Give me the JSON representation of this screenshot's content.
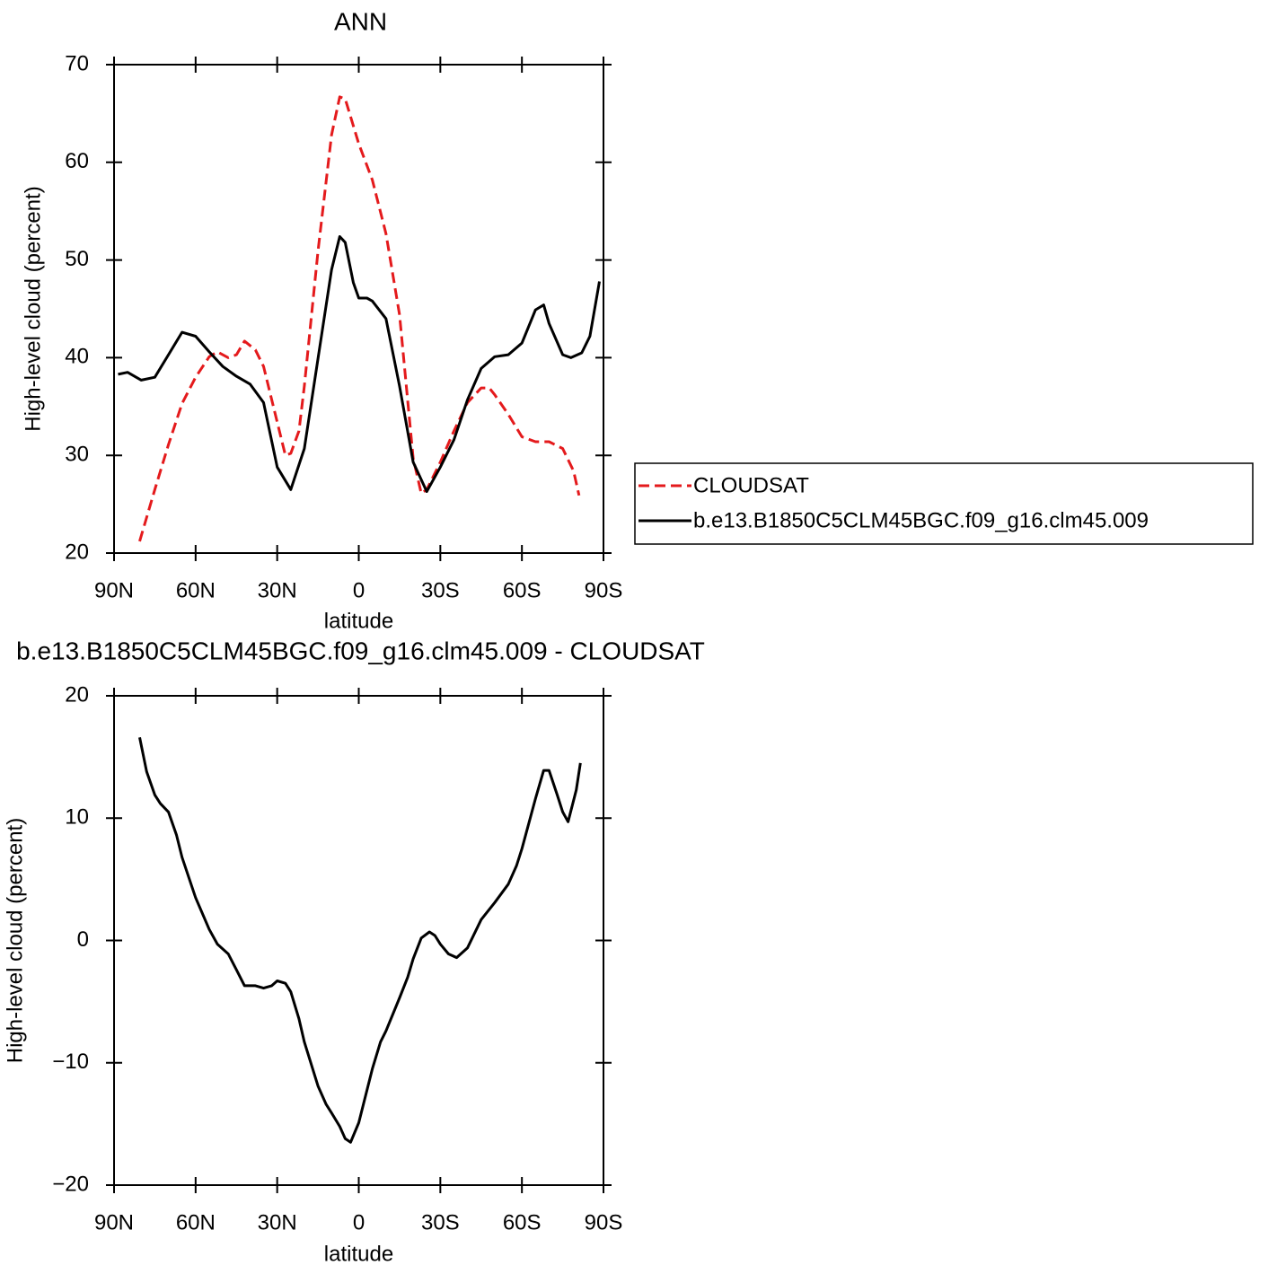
{
  "chart_data": [
    {
      "type": "line",
      "title": "ANN",
      "xlabel": "latitude",
      "ylabel": "High-level cloud (percent)",
      "xlim": [
        90,
        -90
      ],
      "ylim": [
        20,
        70
      ],
      "xticks": [
        {
          "value": 90,
          "label": "90N"
        },
        {
          "value": 60,
          "label": "60N"
        },
        {
          "value": 30,
          "label": "30N"
        },
        0,
        {
          "value": -30,
          "label": "30S"
        },
        {
          "value": -60,
          "label": "60S"
        },
        {
          "value": -90,
          "label": "90S"
        }
      ],
      "yticks": [
        20,
        30,
        40,
        50,
        60,
        70
      ],
      "series": [
        {
          "name": "CLOUDSAT",
          "color": "#e41a1c",
          "linestyle": "dashed",
          "x": [
            80.6,
            75,
            70,
            65,
            60,
            55,
            52,
            48,
            45,
            42,
            38,
            35,
            30,
            27,
            25,
            22,
            20,
            15,
            10,
            7,
            5,
            0,
            -5,
            -10,
            -15,
            -20,
            -23,
            -25,
            -30,
            -35,
            -40,
            -45,
            -48,
            -50,
            -55,
            -60,
            -65,
            -70,
            -75,
            -79,
            -81
          ],
          "values": [
            21.2,
            26.5,
            31.1,
            35.3,
            38.0,
            40.1,
            40.6,
            40.0,
            40.3,
            41.7,
            40.8,
            39.1,
            33.4,
            30.0,
            30.2,
            32.5,
            37.1,
            50.9,
            62.8,
            66.7,
            66.5,
            61.9,
            58.2,
            52.7,
            44.4,
            29.7,
            26.1,
            26.5,
            29.3,
            32.5,
            35.4,
            36.9,
            36.9,
            36.2,
            34.2,
            31.9,
            31.4,
            31.4,
            30.7,
            28.4,
            25.9
          ]
        },
        {
          "name": "b.e13.B1850C5CLM45BGC.f09_g16.clm45.009",
          "color": "#000000",
          "linestyle": "solid",
          "x": [
            88.5,
            85,
            80,
            75,
            70,
            65,
            60,
            55,
            50,
            45,
            40,
            35,
            30,
            25,
            20,
            15,
            10,
            7,
            5,
            2,
            0,
            -3,
            -5,
            -10,
            -15,
            -20,
            -25,
            -30,
            -35,
            -40,
            -45,
            -50,
            -55,
            -60,
            -65,
            -68,
            -70,
            -75,
            -78,
            -82,
            -85,
            -88.5
          ],
          "values": [
            38.3,
            38.5,
            37.7,
            38.0,
            40.3,
            42.6,
            42.2,
            40.6,
            39.1,
            38.1,
            37.3,
            35.4,
            28.8,
            26.5,
            30.7,
            39.9,
            49.0,
            52.4,
            51.8,
            47.7,
            46.1,
            46.1,
            45.8,
            44.0,
            37.1,
            29.3,
            26.3,
            28.8,
            31.6,
            35.7,
            38.9,
            40.1,
            40.3,
            41.5,
            44.9,
            45.4,
            43.5,
            40.3,
            40.0,
            40.5,
            42.2,
            47.8
          ]
        }
      ]
    },
    {
      "type": "line",
      "title": "b.e13.B1850C5CLM45BGC.f09_g16.clm45.009 - CLOUDSAT",
      "xlabel": "latitude",
      "ylabel": "High-level cloud (percent)",
      "xlim": [
        90,
        -90
      ],
      "ylim": [
        -20,
        20
      ],
      "xticks": [
        {
          "value": 90,
          "label": "90N"
        },
        {
          "value": 60,
          "label": "60N"
        },
        {
          "value": 30,
          "label": "30N"
        },
        0,
        {
          "value": -30,
          "label": "30S"
        },
        {
          "value": -60,
          "label": "60S"
        },
        {
          "value": -90,
          "label": "90S"
        }
      ],
      "yticks": [
        {
          "value": -20,
          "label": "−20"
        },
        {
          "value": -10,
          "label": "−10"
        },
        0,
        10,
        20
      ],
      "series": [
        {
          "color": "#000000",
          "linestyle": "solid",
          "x": [
            80.6,
            78,
            75,
            73,
            70,
            67,
            65,
            60,
            55,
            52,
            48,
            45,
            42,
            38,
            35,
            32,
            30,
            27,
            25,
            22,
            20,
            15,
            12,
            10,
            7,
            5,
            3,
            0,
            -5,
            -8,
            -10,
            -15,
            -18,
            -20,
            -23,
            -26,
            -28,
            -30,
            -33,
            -36,
            -40,
            -45,
            -50,
            -55,
            -58,
            -60,
            -65,
            -68,
            -70,
            -73,
            -75,
            -77,
            -80,
            -81.5
          ],
          "values": [
            16.6,
            13.8,
            11.9,
            11.2,
            10.5,
            8.6,
            6.8,
            3.5,
            0.9,
            -0.3,
            -1.1,
            -2.4,
            -3.7,
            -3.7,
            -3.9,
            -3.7,
            -3.3,
            -3.5,
            -4.2,
            -6.4,
            -8.3,
            -11.9,
            -13.4,
            -14.1,
            -15.2,
            -16.2,
            -16.5,
            -14.9,
            -10.5,
            -8.3,
            -7.4,
            -4.7,
            -3.0,
            -1.5,
            0.2,
            0.7,
            0.4,
            -0.3,
            -1.1,
            -1.4,
            -0.6,
            1.7,
            3.1,
            4.6,
            6.1,
            7.5,
            11.6,
            13.9,
            13.9,
            11.9,
            10.5,
            9.7,
            12.3,
            14.5
          ]
        }
      ]
    }
  ]
}
